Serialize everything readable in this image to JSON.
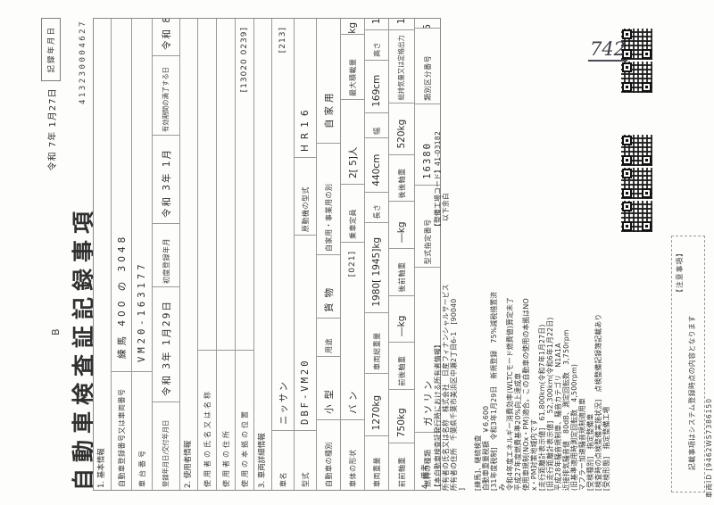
{
  "page": {
    "marker": "B",
    "title": "自動車検査証記録事項",
    "record_date": {
      "label": "記録年月日",
      "value": "令和 7年 1月27日"
    },
    "serial": "413230004627",
    "handwritten": "742"
  },
  "table": {
    "sec1": {
      "heading": "1. 基本情報"
    },
    "r1": {
      "label": "自動車登録番号又は車両番号",
      "value": "練馬 400 の 3048"
    },
    "r2": {
      "label": "車台番号",
      "value": "VM20-163177"
    },
    "r3": {
      "c1l": "登録年月日/交付年月日",
      "c1v": "令和 3年 1月29日",
      "c2l": "初度登録年月",
      "c2v": "令和 3年 1月",
      "c3l": "有効期間の満了する日",
      "c3v": "令和 8年 1月28日"
    },
    "sec2": {
      "heading": "2. 使用者情報"
    },
    "r4": {
      "label": "使用者の氏名又は名称",
      "value": ""
    },
    "r5": {
      "label": "使用者の住所",
      "value": ""
    },
    "r6": {
      "label": "使用の本拠の位置",
      "value": "",
      "code": "[13020 0239]"
    },
    "sec3": {
      "heading": "3. 車両詳細情報"
    },
    "r7": {
      "label": "車名",
      "value": "ニッサン",
      "code": "[213]"
    },
    "r8": {
      "c1l": "型式",
      "c1v": "DBF-VM20",
      "c2l": "原動機の型式",
      "c2v": "HR16"
    },
    "r9": {
      "c1l": "自動車の種別",
      "c1v": "小型",
      "c2l": "用途",
      "c2v": "貨物",
      "c3l": "自家用・事業用の別",
      "c3v": "自家用"
    },
    "r10": {
      "c1l": "車体の形状",
      "c1v": "バン",
      "c1code": "[021]",
      "c2l": "乗車定員",
      "c2v": "2[ 5]人",
      "c3l": "最大積載量",
      "c3v": "600[ 400]kg"
    },
    "r11": {
      "c1l": "車両重量",
      "c1v": "1270kg",
      "c2l": "車両総重量",
      "c2v": "1980[ 1945]kg",
      "c3l": "長さ",
      "c3v": "440cm",
      "c4l": "幅",
      "c4v": "169cm",
      "c5l": "高さ",
      "c5v": "185cm"
    },
    "r12": {
      "c1l": "前前軸重",
      "c1v": "750kg",
      "c2l": "前後軸重",
      "c2v": "―kg",
      "c3l": "後前軸重",
      "c3v": "―kg",
      "c4l": "後後軸重",
      "c4v": "520kg",
      "c5l": "総排気量又は定格出力",
      "c5v": "1.59L"
    },
    "r13": {
      "c1l": "燃料の種類",
      "c1v": "ガソリン",
      "c2l": "型式指定番号",
      "c2v": "16380",
      "c3l": "類別区分番号",
      "c3v": "0245"
    },
    "sec4": {
      "heading": "4. 備考"
    }
  },
  "remarks": {
    "left": [
      "【本自動車検査証発行時における所有者情報】",
      "所有者の氏名又は名称　株式会社　日産フィナンシャルサービス",
      "所有者の住所　千葉県千葉市美浜区中瀬2丁目6-1　[90040",
      "]",
      "[練馬]、継続検査",
      "自動車重量税額　￥6,600",
      "[31年度税制]　令和3年1月29日　新規登録　75%減税措置済",
      "み",
      "令和4年度エネルギー消費効率(WLTCモード燃費値)算定未了",
      "平成27年度燃費基準20%向上達成車",
      "使用車規制(NOx・PM)適合。この自動車の使用の本拠はNO",
      "x・PM対策地域内です",
      "[走行距離計表示値]　61,800km(令和7年1月27日)",
      "[旧走行距離計表示値]　52,300km(令和6年1月22日)",
      "平成28年騒音規制車、騒音カテゴリ　N1A1A",
      "近接排気騒音値　80dB、測定回転数　3,750rpm",
      "(旧基準適用時測定回転数　4,500rpm)",
      "マフラー加速騒音規制適用車",
      "[受検種別]　指定整備車",
      "[検査時の点検整備実施状況]　点検整備記録簿記載あり",
      "[受検形態]　指定整備工場"
    ],
    "right": [
      "【整備工場コード】41-03182",
      "以下余白"
    ]
  },
  "notice": {
    "heading": "【注意事項】",
    "line": "記載事項はシステム登録時点の内容となります",
    "vehicle_id": "車両ID [9462WS7386150"
  }
}
